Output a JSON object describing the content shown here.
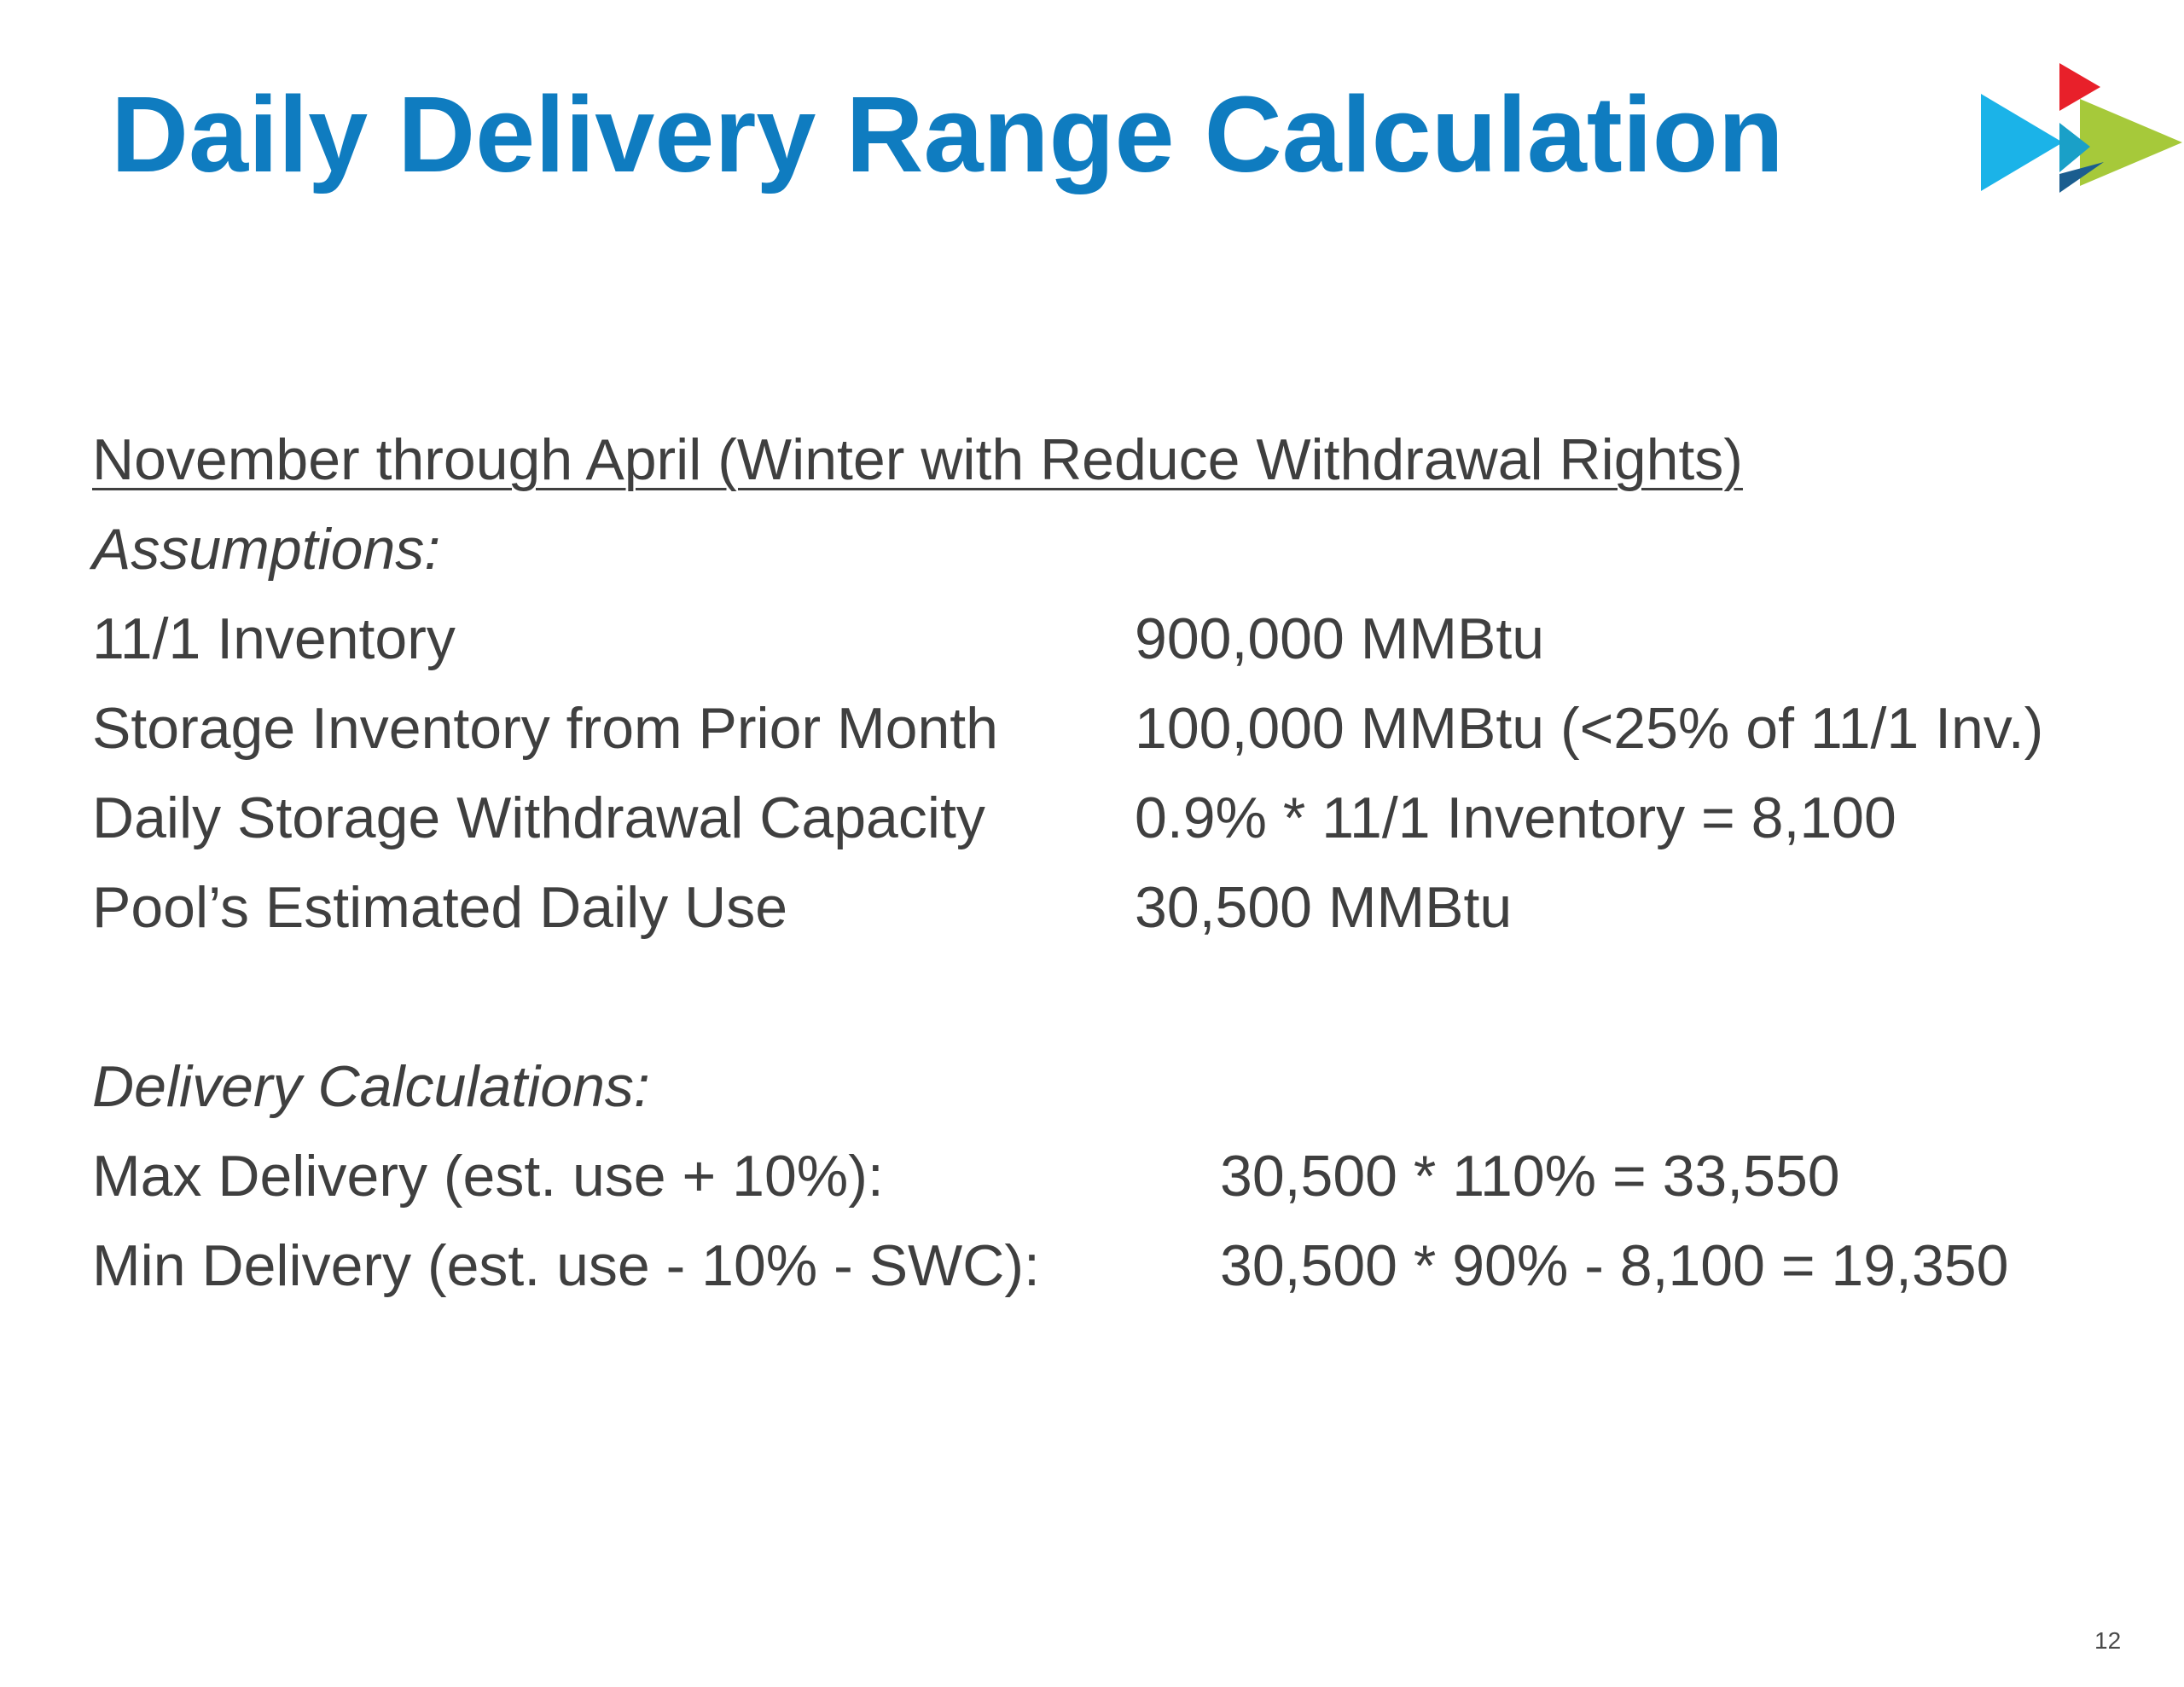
{
  "title": "Daily Delivery Range Calculation",
  "section_heading": "November through April (Winter with Reduce Withdrawal Rights)",
  "assumptions": {
    "heading": "Assumptions:",
    "rows": [
      {
        "label": "11/1 Inventory",
        "value": "900,000 MMBtu"
      },
      {
        "label": "Storage Inventory from Prior Month",
        "value": "100,000 MMBtu (<25% of 11/1 Inv.)"
      },
      {
        "label": "Daily Storage Withdrawal Capacity",
        "value": "0.9% * 11/1 Inventory = 8,100"
      },
      {
        "label": "Pool’s Estimated Daily Use",
        "value": "30,500 MMBtu"
      }
    ]
  },
  "delivery": {
    "heading": "Delivery Calculations:",
    "rows": [
      {
        "label": "Max Delivery (est. use + 10%):",
        "value": "30,500 * 110% = 33,550"
      },
      {
        "label": "Min Delivery (est. use - 10% - SWC):",
        "value": "30,500 * 90% - 8,100 = 19,350"
      }
    ]
  },
  "page_number": "12",
  "colors": {
    "title": "#0f7cc0",
    "logo_cyan": "#1bb3e8",
    "logo_red": "#e8202a",
    "logo_green": "#a6c93a",
    "logo_navy": "#1a5d8f"
  },
  "logo_icon": "triangle-arrow-logo"
}
